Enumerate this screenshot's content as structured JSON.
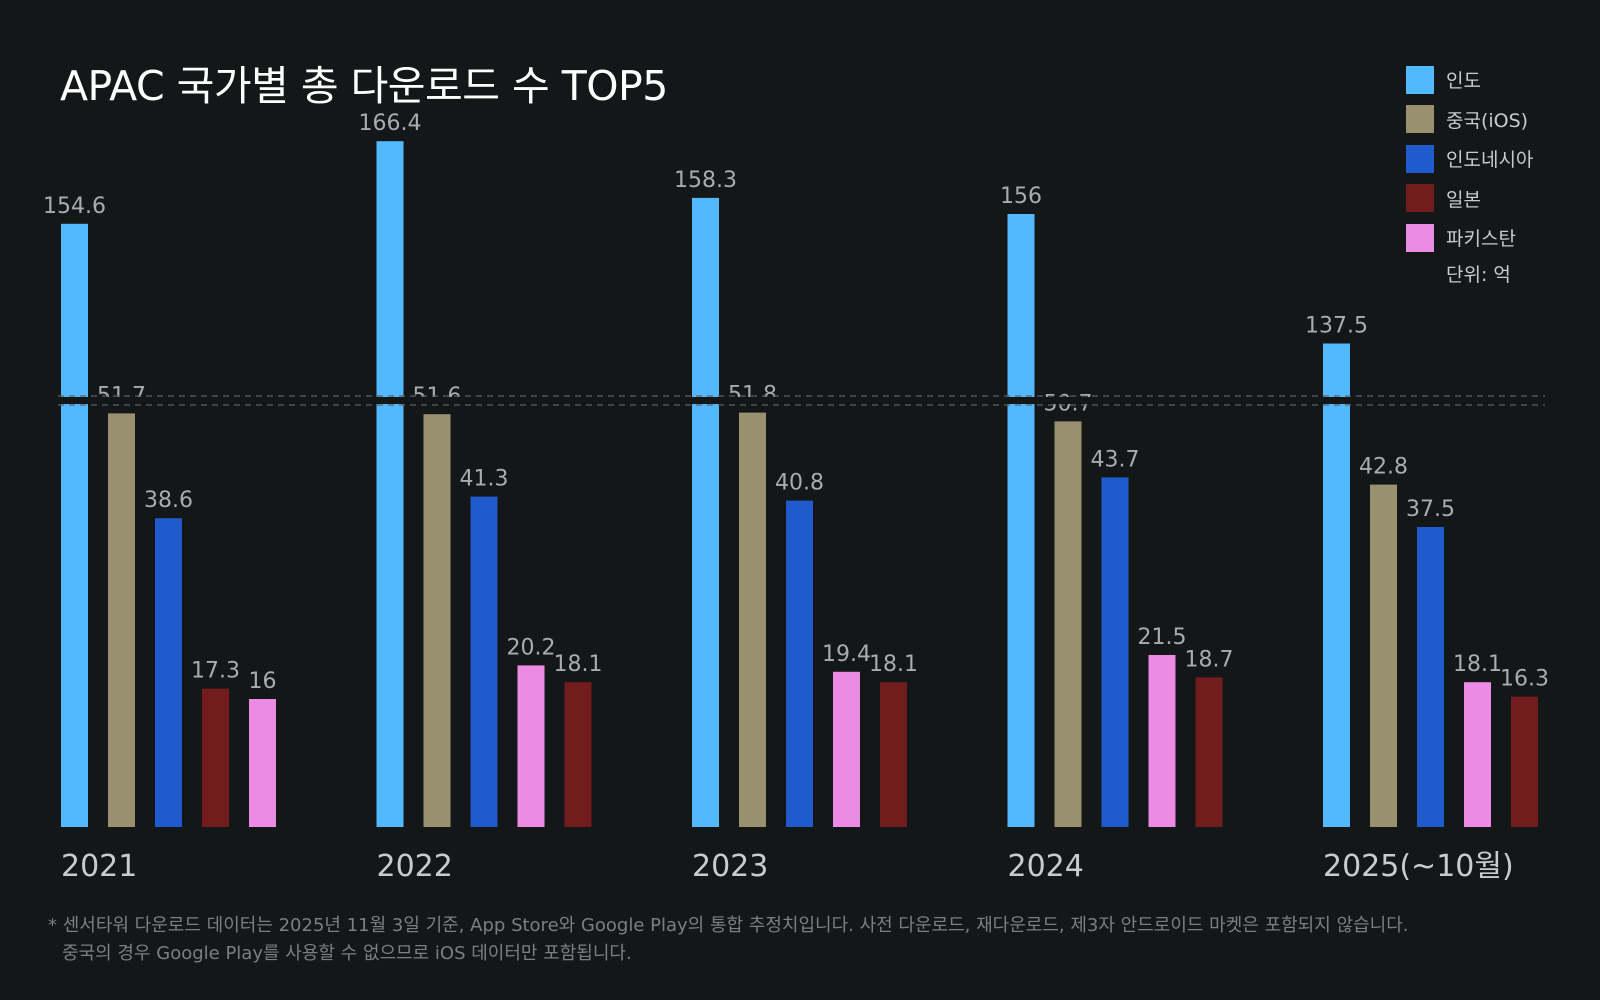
{
  "title": "APAC 국가별 총 다운로드 수 TOP5",
  "unit_label": "단위: 억",
  "footnote": {
    "line1": "* 센서타워 다운로드 데이터는 2025년 11월 3일 기준, App Store와 Google Play의 통합 추정치입니다. 사전 다운로드, 재다운로드, 제3자 안드로이드 마켓은 포함되지 않습니다.",
    "line2": "중국의 경우 Google Play를 사용할 수 없으므로 iOS 데이터만 포함됩니다."
  },
  "legend": [
    {
      "label": "인도",
      "color": "#52b8ff"
    },
    {
      "label": "중국(iOS)",
      "color": "#999070"
    },
    {
      "label": "인도네시아",
      "color": "#1f5bcc"
    },
    {
      "label": "일본",
      "color": "#721c1e"
    },
    {
      "label": "파키스탄",
      "color": "#eb8be3"
    }
  ],
  "chart_data": {
    "type": "bar",
    "title": "APAC 국가별 총 다운로드 수 TOP5",
    "unit": "억",
    "axis_break": true,
    "xlabel": "",
    "ylabel": "",
    "legend_position": "top-right",
    "groups": [
      {
        "label": "2021",
        "bars": [
          {
            "country": "인도",
            "value": 154.6
          },
          {
            "country": "중국(iOS)",
            "value": 51.7
          },
          {
            "country": "인도네시아",
            "value": 38.6
          },
          {
            "country": "일본",
            "value": 17.3
          },
          {
            "country": "파키스탄",
            "value": 16
          }
        ]
      },
      {
        "label": "2022",
        "bars": [
          {
            "country": "인도",
            "value": 166.4
          },
          {
            "country": "중국(iOS)",
            "value": 51.6
          },
          {
            "country": "인도네시아",
            "value": 41.3
          },
          {
            "country": "파키스탄",
            "value": 20.2
          },
          {
            "country": "일본",
            "value": 18.1
          }
        ]
      },
      {
        "label": "2023",
        "bars": [
          {
            "country": "인도",
            "value": 158.3
          },
          {
            "country": "중국(iOS)",
            "value": 51.8
          },
          {
            "country": "인도네시아",
            "value": 40.8
          },
          {
            "country": "파키스탄",
            "value": 19.4
          },
          {
            "country": "일본",
            "value": 18.1
          }
        ]
      },
      {
        "label": "2024",
        "bars": [
          {
            "country": "인도",
            "value": 156
          },
          {
            "country": "중국(iOS)",
            "value": 50.7
          },
          {
            "country": "인도네시아",
            "value": 43.7
          },
          {
            "country": "파키스탄",
            "value": 21.5
          },
          {
            "country": "일본",
            "value": 18.7
          }
        ]
      },
      {
        "label": "2025(~10월)",
        "bars": [
          {
            "country": "인도",
            "value": 137.5
          },
          {
            "country": "중국(iOS)",
            "value": 42.8
          },
          {
            "country": "인도네시아",
            "value": 37.5
          },
          {
            "country": "파키스탄",
            "value": 18.1
          },
          {
            "country": "일본",
            "value": 16.3
          }
        ]
      }
    ]
  }
}
